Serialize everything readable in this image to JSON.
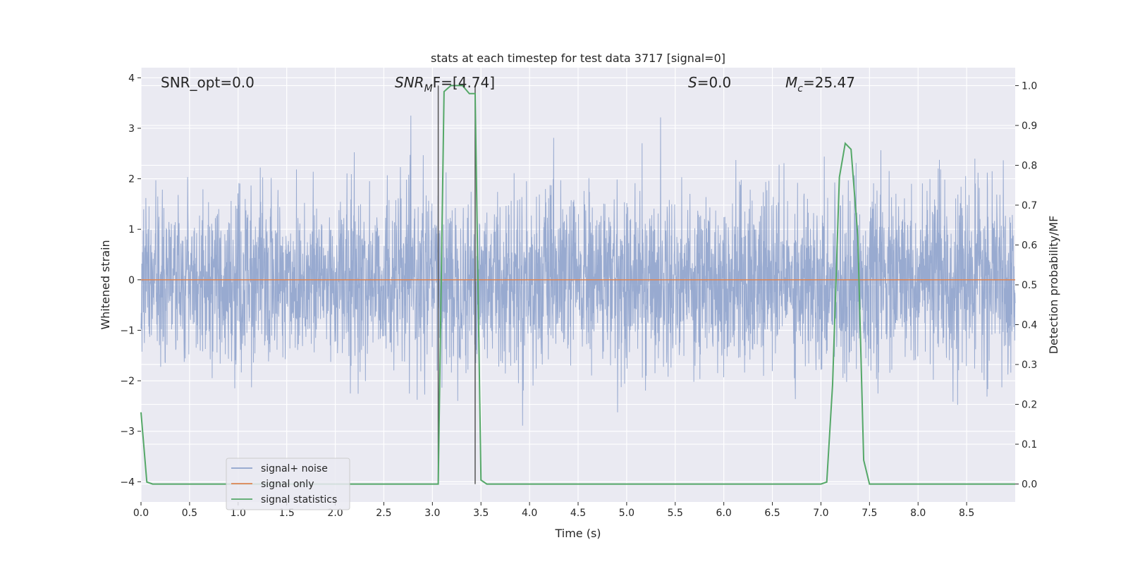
{
  "chart_data": {
    "type": "line",
    "title": "stats at each timestep for test data 3717 [signal=0]",
    "xlabel": "Time (s)",
    "ylabel_left": "Whitened strain",
    "ylabel_right": "Detection probability/MF",
    "xlim": [
      0.0,
      9.0
    ],
    "ylim_left": [
      -4.4,
      4.2
    ],
    "ylim_right": [
      -0.045,
      1.045
    ],
    "x_ticks": [
      0.0,
      0.5,
      1.0,
      1.5,
      2.0,
      2.5,
      3.0,
      3.5,
      4.0,
      4.5,
      5.0,
      5.5,
      6.0,
      6.5,
      7.0,
      7.5,
      8.0,
      8.5
    ],
    "x_tick_labels": [
      "0.0",
      "0.5",
      "1.0",
      "1.5",
      "2.0",
      "2.5",
      "3.0",
      "3.5",
      "4.0",
      "4.5",
      "5.0",
      "5.5",
      "6.0",
      "6.5",
      "7.0",
      "7.5",
      "8.0",
      "8.5"
    ],
    "y_left_ticks": [
      -4,
      -3,
      -2,
      -1,
      0,
      1,
      2,
      3,
      4
    ],
    "y_left_tick_labels": [
      "−4",
      "−3",
      "−2",
      "−1",
      "0",
      "1",
      "2",
      "3",
      "4"
    ],
    "y_right_ticks": [
      0.0,
      0.1,
      0.2,
      0.3,
      0.4,
      0.5,
      0.6,
      0.7,
      0.8,
      0.9,
      1.0
    ],
    "y_right_tick_labels": [
      "0.0",
      "0.1",
      "0.2",
      "0.3",
      "0.4",
      "0.5",
      "0.6",
      "0.7",
      "0.8",
      "0.9",
      "1.0"
    ],
    "grid": true,
    "legend_placement": "lower-left",
    "annotations": {
      "snr_opt": "SNR_opt=0.0",
      "snr_mf_main": "SNR",
      "snr_mf_sub": "M",
      "snr_mf_rest": "F=[4.74]",
      "s_main": "S",
      "s_rest": "=0.0",
      "mc_main": "M",
      "mc_sub": "c",
      "mc_rest": "=25.47"
    },
    "vertical_markers": [
      3.06,
      3.44
    ],
    "series": [
      {
        "name": "signal+ noise",
        "color": "#8fa3cc",
        "description_axis": "left",
        "noise_std": 0.85,
        "sample_rate_hz": 400
      },
      {
        "name": "signal only",
        "color": "#dd8452",
        "axis": "left",
        "x": [
          0.0,
          9.0
        ],
        "y": [
          0.0,
          0.0
        ]
      },
      {
        "name": "signal statistics",
        "color": "#55a868",
        "axis": "right",
        "x": [
          0.0,
          0.06,
          0.12,
          1.0,
          2.0,
          2.5,
          3.0,
          3.06,
          3.12,
          3.19,
          3.31,
          3.38,
          3.44,
          3.5,
          3.56,
          4.0,
          5.0,
          6.0,
          7.0,
          7.06,
          7.12,
          7.19,
          7.25,
          7.31,
          7.38,
          7.44,
          7.5,
          8.0,
          9.0
        ],
        "y": [
          0.18,
          0.005,
          0.0,
          0.0,
          0.0,
          0.0,
          0.0,
          0.0,
          0.985,
          1.0,
          1.0,
          0.98,
          0.98,
          0.01,
          0.0,
          0.0,
          0.0,
          0.0,
          0.0,
          0.005,
          0.25,
          0.77,
          0.855,
          0.84,
          0.62,
          0.06,
          0.0,
          0.0,
          0.0
        ]
      }
    ]
  },
  "legend": {
    "items": [
      {
        "label": "signal+ noise",
        "color": "#8fa3cc"
      },
      {
        "label": "signal only",
        "color": "#dd8452"
      },
      {
        "label": "signal statistics",
        "color": "#55a868"
      }
    ]
  }
}
